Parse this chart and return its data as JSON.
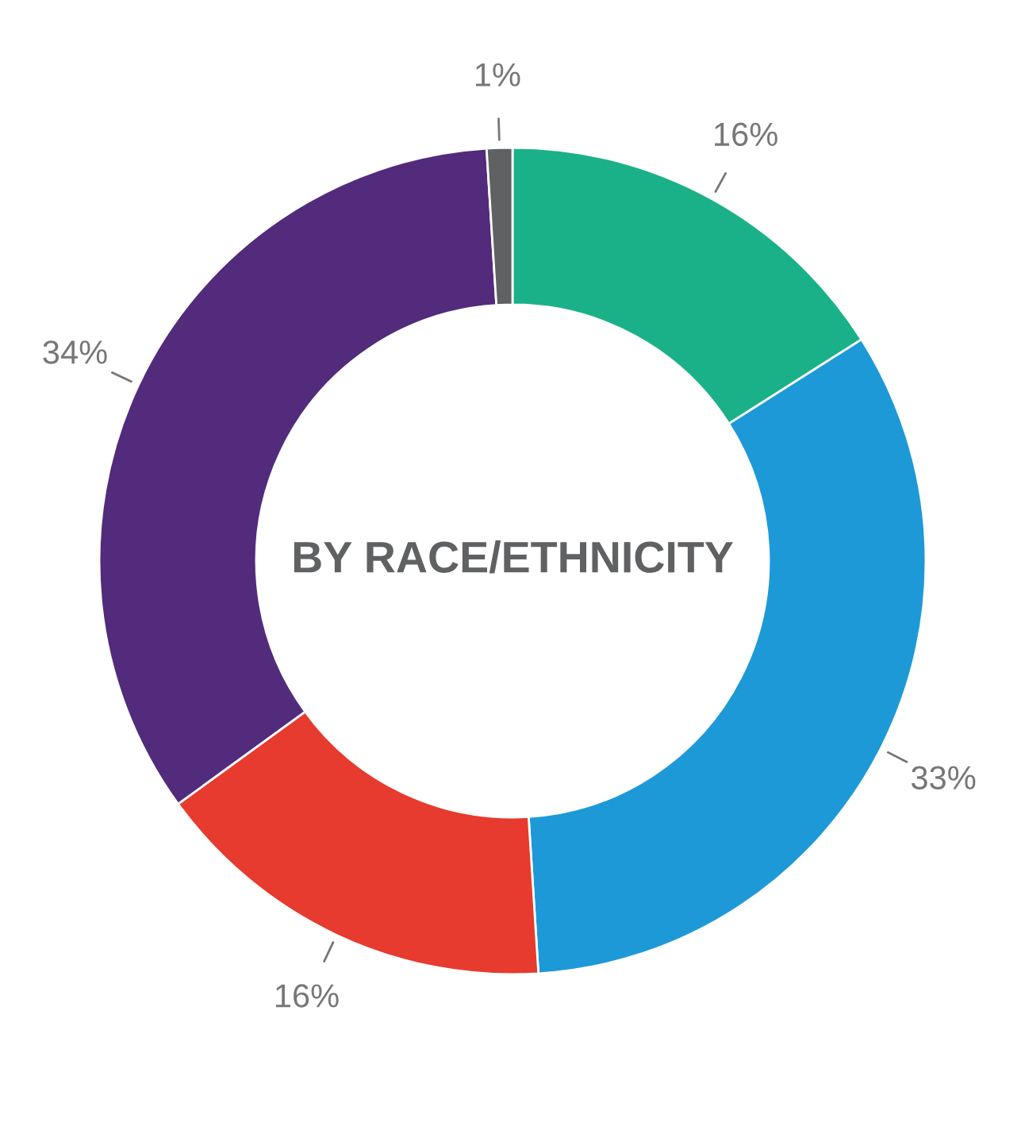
{
  "chart_data": {
    "type": "donut",
    "title": "BY RACE/ETHNICITY",
    "categories": [
      null,
      null,
      null,
      null,
      null
    ],
    "values": [
      16,
      33,
      16,
      34,
      1
    ],
    "colors": [
      "#1bb188",
      "#1e99d8",
      "#e63b2e",
      "#522b7c",
      "#5f6163"
    ],
    "value_labels": [
      "16%",
      "33%",
      "16%",
      "34%",
      "1%"
    ]
  }
}
